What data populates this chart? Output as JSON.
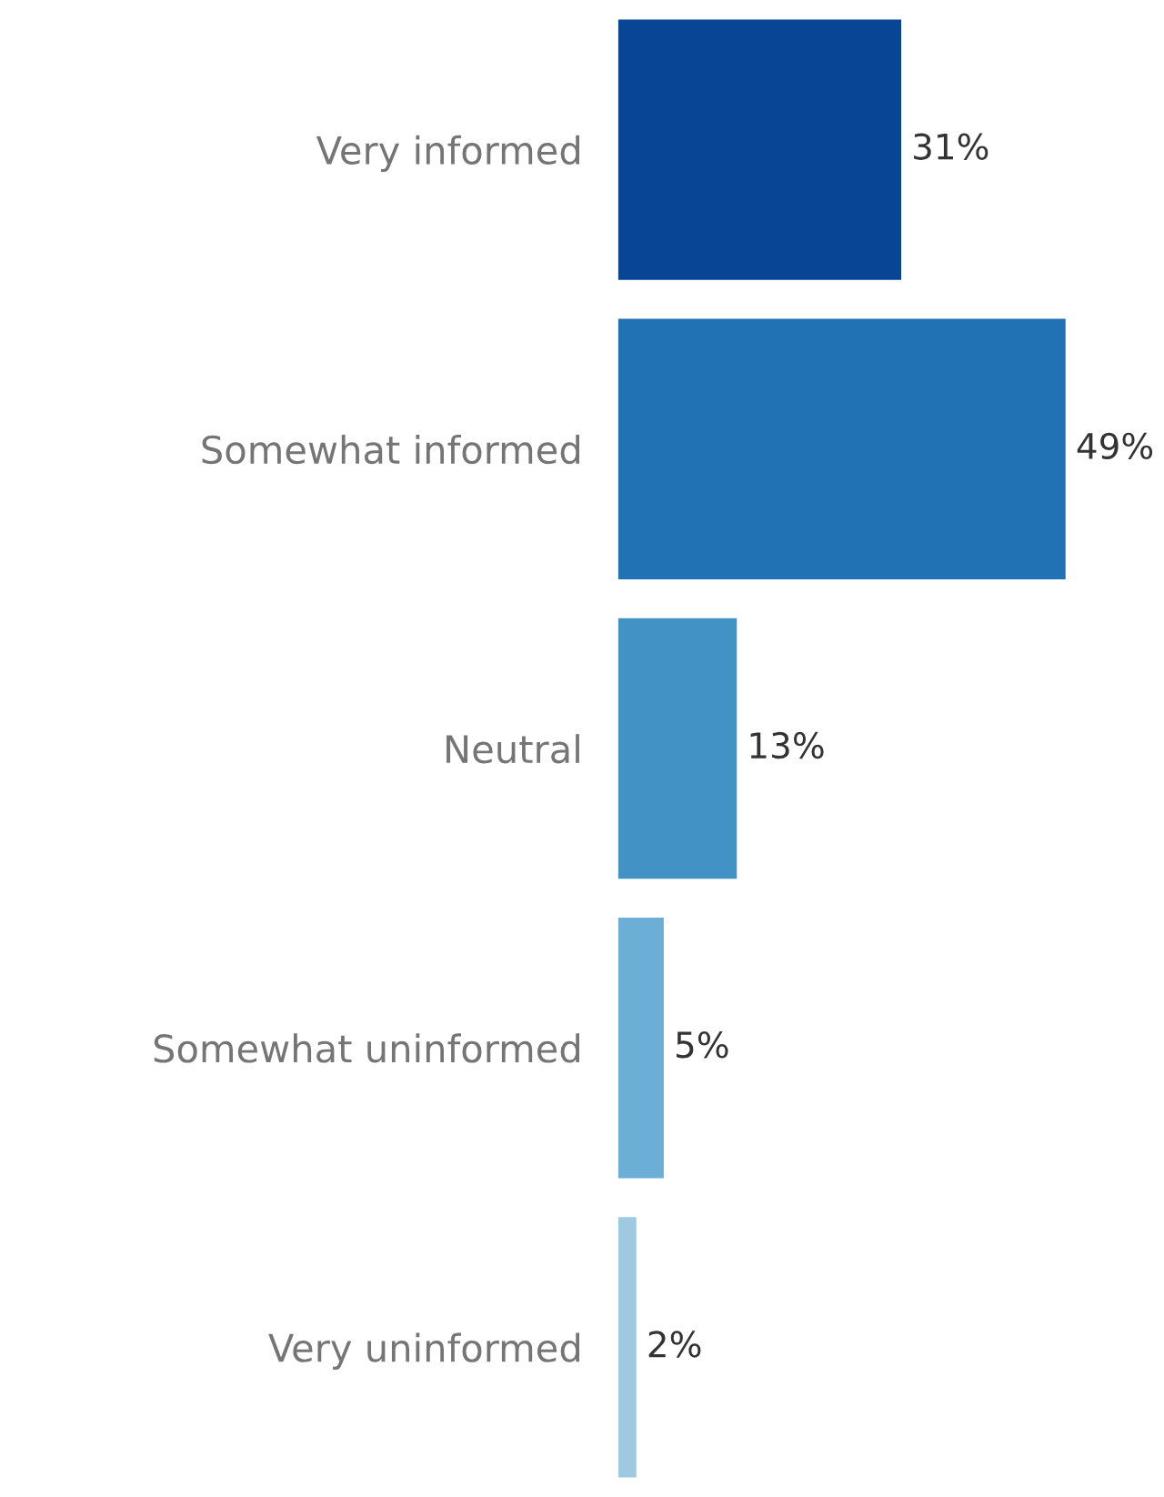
{
  "chart_data": {
    "type": "bar",
    "orientation": "horizontal",
    "categories": [
      "Very informed",
      "Somewhat informed",
      "Neutral",
      "Somewhat uninformed",
      "Very uninformed"
    ],
    "values": [
      31,
      49,
      13,
      5,
      2
    ],
    "colors": [
      "#084594",
      "#2171b5",
      "#4292c6",
      "#6baed6",
      "#9ecae1"
    ],
    "value_labels": [
      "31%",
      "49%",
      "13%",
      "5%",
      "2%"
    ],
    "tick_labels": "y",
    "grid": false,
    "legend": false
  }
}
